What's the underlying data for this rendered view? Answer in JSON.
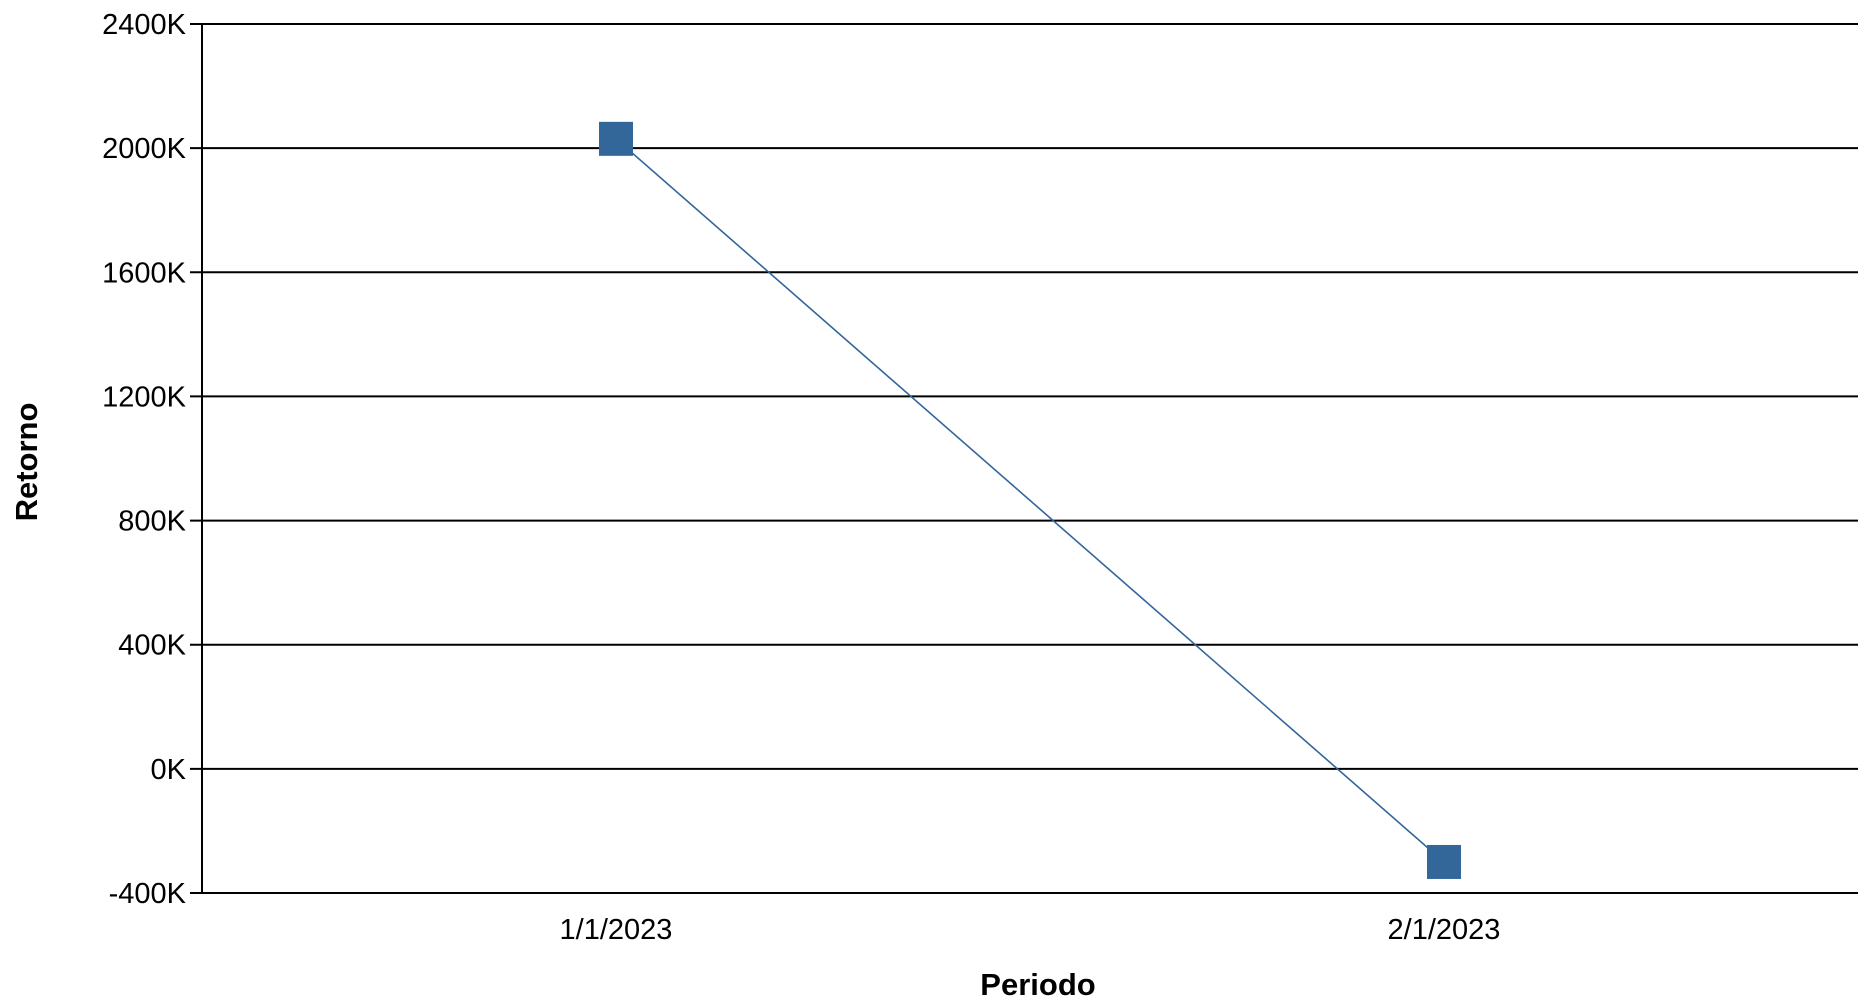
{
  "chart_data": {
    "type": "line",
    "title": "",
    "xlabel": "Periodo",
    "ylabel": "Retorno",
    "categories": [
      "1/1/2023",
      "2/1/2023"
    ],
    "series": [
      {
        "values": [
          2030000,
          -300000
        ],
        "color": "#336699",
        "marker": "square"
      }
    ],
    "ylim": [
      -400000,
      2400000
    ],
    "yticks": [
      {
        "value": 2400000,
        "label": "2400K"
      },
      {
        "value": 2000000,
        "label": "2000K"
      },
      {
        "value": 1600000,
        "label": "1600K"
      },
      {
        "value": 1200000,
        "label": "1200K"
      },
      {
        "value": 800000,
        "label": "800K"
      },
      {
        "value": 400000,
        "label": "400K"
      },
      {
        "value": 0,
        "label": "0K"
      },
      {
        "value": -400000,
        "label": "-400K"
      }
    ],
    "grid": true,
    "legend": "none"
  }
}
